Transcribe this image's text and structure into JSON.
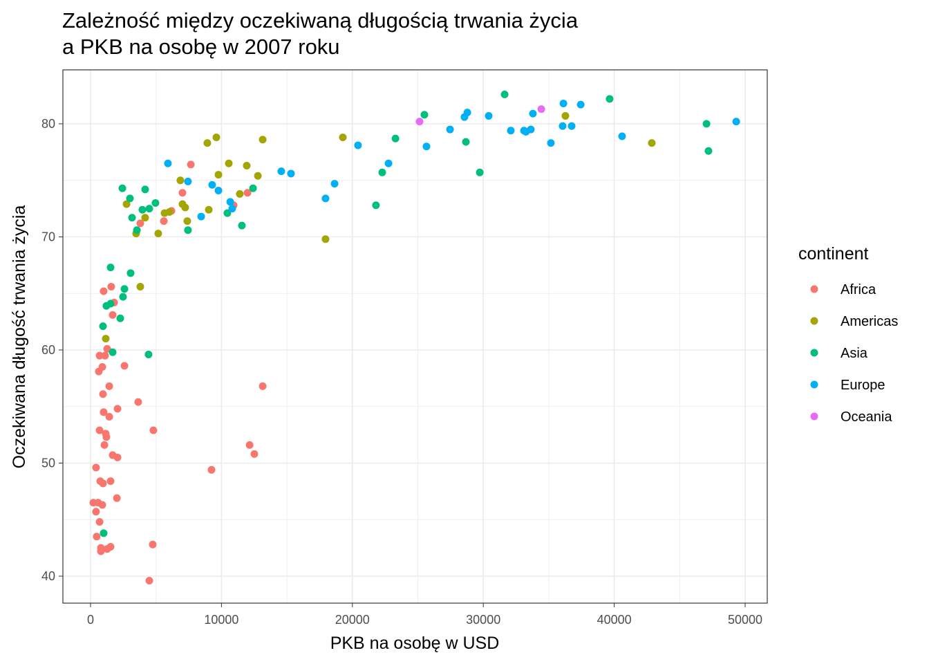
{
  "chart_data": {
    "type": "scatter",
    "title": [
      "Zależność między oczekiwaną długością trwania życia",
      "a PKB na osobę w 2007 roku"
    ],
    "xlabel": "PKB na osobę w USD",
    "ylabel": "Oczekiwana długość trwania życia",
    "xlim": [
      -2100,
      51700
    ],
    "ylim": [
      37.6,
      84.7
    ],
    "xticks": [
      0,
      10000,
      20000,
      30000,
      40000,
      50000
    ],
    "xtick_labels": [
      "0",
      "10000",
      "20000",
      "30000",
      "40000",
      "50000"
    ],
    "yticks": [
      40,
      50,
      60,
      70,
      80
    ],
    "ytick_labels": [
      "40",
      "50",
      "60",
      "70",
      "80"
    ],
    "grid": true,
    "legend": {
      "title": "continent",
      "placement": "right"
    },
    "series": [
      {
        "name": "Africa",
        "color": "#F8766D",
        "points": [
          [
            1000,
            65.2
          ],
          [
            1580,
            65.6
          ],
          [
            1800,
            64.2
          ],
          [
            1690,
            63.1
          ],
          [
            1270,
            60.1
          ],
          [
            690,
            59.5
          ],
          [
            1110,
            59.5
          ],
          [
            900,
            58.5
          ],
          [
            2590,
            58.6
          ],
          [
            630,
            58.1
          ],
          [
            1430,
            56.8
          ],
          [
            950,
            56.1
          ],
          [
            13150,
            56.8
          ],
          [
            3640,
            55.4
          ],
          [
            2060,
            54.8
          ],
          [
            1000,
            54.5
          ],
          [
            1430,
            54.1
          ],
          [
            4800,
            52.9
          ],
          [
            690,
            52.9
          ],
          [
            1160,
            52.6
          ],
          [
            1210,
            52.3
          ],
          [
            1060,
            51.6
          ],
          [
            12150,
            51.6
          ],
          [
            12510,
            50.8
          ],
          [
            1690,
            50.7
          ],
          [
            2060,
            50.5
          ],
          [
            9240,
            49.4
          ],
          [
            420,
            49.6
          ],
          [
            740,
            48.4
          ],
          [
            950,
            48.2
          ],
          [
            1530,
            48.4
          ],
          [
            2010,
            46.9
          ],
          [
            210,
            46.5
          ],
          [
            580,
            46.5
          ],
          [
            900,
            46.3
          ],
          [
            420,
            45.7
          ],
          [
            690,
            44.8
          ],
          [
            470,
            43.5
          ],
          [
            4750,
            42.8
          ],
          [
            790,
            42.5
          ],
          [
            1270,
            42.4
          ],
          [
            1530,
            42.6
          ],
          [
            790,
            42.2
          ],
          [
            4490,
            39.6
          ],
          [
            7020,
            73.9
          ],
          [
            7660,
            76.4
          ],
          [
            5600,
            71.4
          ],
          [
            3800,
            71.2
          ],
          [
            6180,
            72.3
          ],
          [
            10930,
            72.8
          ],
          [
            11990,
            73.9
          ]
        ]
      },
      {
        "name": "Americas",
        "color": "#A3A500",
        "points": [
          [
            2750,
            72.9
          ],
          [
            3480,
            70.3
          ],
          [
            3800,
            65.6
          ],
          [
            1160,
            61.0
          ],
          [
            4170,
            71.7
          ],
          [
            5170,
            70.3
          ],
          [
            5650,
            72.1
          ],
          [
            6020,
            72.2
          ],
          [
            6860,
            75.0
          ],
          [
            7020,
            72.9
          ],
          [
            7230,
            72.6
          ],
          [
            7390,
            71.4
          ],
          [
            8920,
            78.3
          ],
          [
            9610,
            78.8
          ],
          [
            9770,
            75.5
          ],
          [
            9030,
            72.4
          ],
          [
            10560,
            76.5
          ],
          [
            11930,
            76.3
          ],
          [
            11400,
            73.8
          ],
          [
            12780,
            75.4
          ],
          [
            13150,
            78.6
          ],
          [
            17950,
            69.8
          ],
          [
            19270,
            78.8
          ],
          [
            36270,
            80.7
          ],
          [
            42870,
            78.3
          ]
        ]
      },
      {
        "name": "Asia",
        "color": "#00BF7D",
        "points": [
          [
            2430,
            74.3
          ],
          [
            4170,
            74.2
          ],
          [
            3010,
            73.4
          ],
          [
            3170,
            71.7
          ],
          [
            3540,
            70.6
          ],
          [
            3960,
            72.4
          ],
          [
            4490,
            72.5
          ],
          [
            4960,
            73.0
          ],
          [
            7440,
            70.6
          ],
          [
            10450,
            72.1
          ],
          [
            11560,
            71.0
          ],
          [
            12410,
            74.3
          ],
          [
            1530,
            67.3
          ],
          [
            3060,
            66.8
          ],
          [
            2590,
            65.4
          ],
          [
            2480,
            64.7
          ],
          [
            1210,
            63.9
          ],
          [
            1530,
            64.1
          ],
          [
            2270,
            62.8
          ],
          [
            950,
            62.1
          ],
          [
            1690,
            59.8
          ],
          [
            4430,
            59.6
          ],
          [
            1000,
            43.8
          ],
          [
            21800,
            72.8
          ],
          [
            22280,
            75.7
          ],
          [
            23290,
            78.7
          ],
          [
            25500,
            80.8
          ],
          [
            28670,
            78.4
          ],
          [
            29730,
            75.7
          ],
          [
            31630,
            82.6
          ],
          [
            39650,
            82.2
          ],
          [
            47050,
            80.0
          ],
          [
            47200,
            77.6
          ]
        ]
      },
      {
        "name": "Europe",
        "color": "#00B0F6",
        "points": [
          [
            5910,
            76.5
          ],
          [
            7440,
            74.9
          ],
          [
            8450,
            71.8
          ],
          [
            9290,
            74.6
          ],
          [
            9770,
            74.1
          ],
          [
            10670,
            73.1
          ],
          [
            10820,
            72.5
          ],
          [
            14570,
            75.8
          ],
          [
            15310,
            75.6
          ],
          [
            17950,
            73.4
          ],
          [
            18640,
            74.7
          ],
          [
            20430,
            78.1
          ],
          [
            22760,
            76.5
          ],
          [
            25660,
            78.0
          ],
          [
            27460,
            79.5
          ],
          [
            28560,
            80.6
          ],
          [
            28780,
            81.0
          ],
          [
            30410,
            80.7
          ],
          [
            32100,
            79.4
          ],
          [
            33110,
            79.4
          ],
          [
            33260,
            79.3
          ],
          [
            33630,
            79.5
          ],
          [
            33790,
            80.9
          ],
          [
            35160,
            78.3
          ],
          [
            36120,
            81.8
          ],
          [
            36060,
            79.8
          ],
          [
            36750,
            79.8
          ],
          [
            37440,
            81.7
          ],
          [
            40600,
            78.9
          ],
          [
            49320,
            80.2
          ]
        ]
      },
      {
        "name": "Oceania",
        "color": "#E76BF3",
        "points": [
          [
            25130,
            80.2
          ],
          [
            34430,
            81.3
          ]
        ]
      }
    ]
  }
}
